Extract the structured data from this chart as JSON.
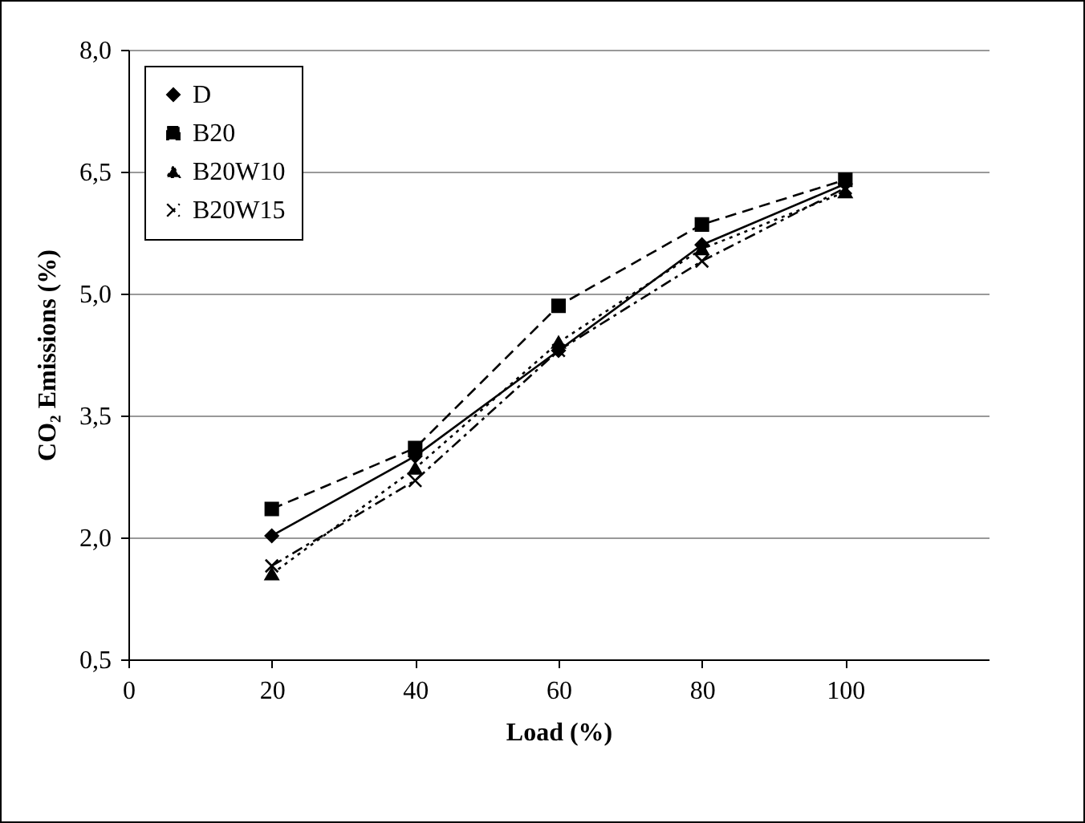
{
  "chart_data": {
    "type": "line",
    "xlabel": "Load (%)",
    "ylabel": "CO₂ Emissions (%)",
    "x": [
      20,
      40,
      60,
      80,
      100
    ],
    "xlim": [
      0,
      120
    ],
    "xticks": [
      0,
      20,
      40,
      60,
      80,
      100
    ],
    "ylim": [
      0.5,
      8.0
    ],
    "yticks": [
      {
        "value": 0.5,
        "label": "0,5"
      },
      {
        "value": 2.0,
        "label": "2,0"
      },
      {
        "value": 3.5,
        "label": "3,5"
      },
      {
        "value": 5.0,
        "label": "5,0"
      },
      {
        "value": 6.5,
        "label": "6,5"
      },
      {
        "value": 8.0,
        "label": "8,0"
      }
    ],
    "grid": "y",
    "legend": "top left",
    "series": [
      {
        "name": "D",
        "color": "#000000",
        "marker": "diamond",
        "line_style": "solid",
        "values": [
          2.02,
          3.0,
          4.3,
          5.6,
          6.35
        ]
      },
      {
        "name": "B20",
        "color": "#000000",
        "marker": "square",
        "line_style": "dashed",
        "values": [
          2.35,
          3.1,
          4.85,
          5.85,
          6.4
        ]
      },
      {
        "name": "B20W10",
        "color": "#000000",
        "marker": "triangle",
        "line_style": "dotted",
        "values": [
          1.55,
          2.85,
          4.4,
          5.55,
          6.25
        ]
      },
      {
        "name": "B20W15",
        "color": "#000000",
        "marker": "cross",
        "line_style": "dashdot",
        "values": [
          1.65,
          2.7,
          4.3,
          5.4,
          6.3
        ]
      }
    ]
  }
}
